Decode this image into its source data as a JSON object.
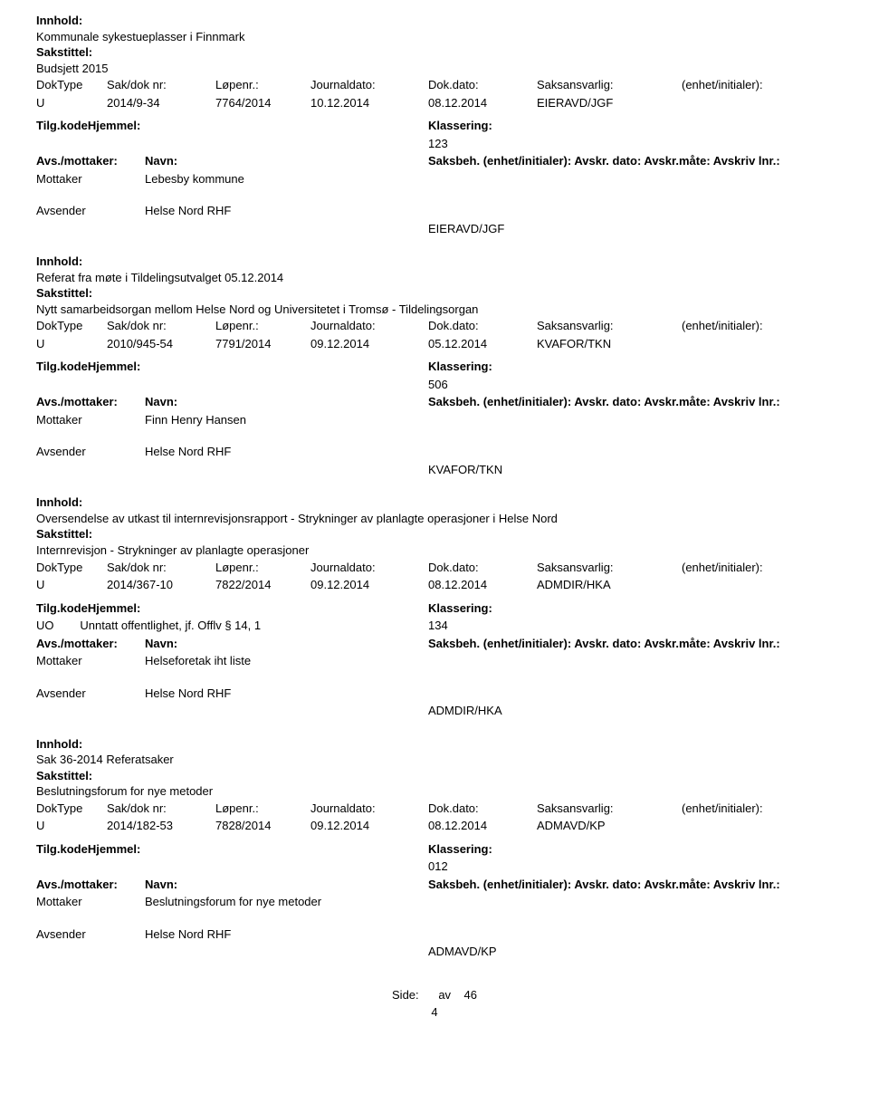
{
  "labels": {
    "innhold": "Innhold:",
    "sakstittel": "Sakstittel:",
    "doktype": "DokType",
    "sakdoknr": "Sak/dok nr:",
    "lopenr": "Løpenr.:",
    "journaldato": "Journaldato:",
    "dokdato": "Dok.dato:",
    "saksansvarlig": "Saksansvarlig:",
    "enhet_initialer": "(enhet/initialer):",
    "tilgkode": "Tilg.kode",
    "hjemmel": "Hjemmel:",
    "tilgkodehjemmel_combined": "Tilg.kodeHjemmel:",
    "klassering": "Klassering:",
    "avsmottaker": "Avs./mottaker:",
    "navn": "Navn:",
    "saksbeh": "Saksbeh. (enhet/initialer):",
    "avskr_dato": "Avskr. dato:",
    "avskr_maate": "Avskr.måte:",
    "avskriv_lnr": "Avskriv lnr.:",
    "mottaker": "Mottaker",
    "avsender": "Avsender"
  },
  "footer": {
    "side_label": "Side:",
    "av_label": "av",
    "total_pages": "46",
    "page_number": "4"
  },
  "entries": [
    {
      "innhold": "Kommunale sykestueplasser i Finnmark",
      "sakstittel": "Budsjett 2015",
      "doktype": "U",
      "sakdoknr": "2014/9-34",
      "lopenr": "7764/2014",
      "journaldato": "10.12.2014",
      "dokdato": "08.12.2014",
      "saksansvarlig": "EIERAVD/JGF",
      "tilg_left": "",
      "klassering": "123",
      "recipients": [
        {
          "role": "Mottaker",
          "name": "Lebesby kommune"
        }
      ],
      "sender": {
        "role": "Avsender",
        "name": "Helse Nord RHF"
      },
      "bottom_code": "EIERAVD/JGF"
    },
    {
      "innhold": "Referat fra møte i Tildelingsutvalget 05.12.2014",
      "sakstittel": "Nytt samarbeidsorgan mellom Helse Nord og Universitetet i Tromsø - Tildelingsorgan",
      "doktype": "U",
      "sakdoknr": "2010/945-54",
      "lopenr": "7791/2014",
      "journaldato": "09.12.2014",
      "dokdato": "05.12.2014",
      "saksansvarlig": "KVAFOR/TKN",
      "tilg_left": "",
      "klassering": "506",
      "recipients": [
        {
          "role": "Mottaker",
          "name": "Finn Henry Hansen"
        }
      ],
      "sender": {
        "role": "Avsender",
        "name": "Helse Nord RHF"
      },
      "bottom_code": "KVAFOR/TKN"
    },
    {
      "innhold": "Oversendelse av utkast til internrevisjonsrapport - Strykninger av planlagte operasjoner i Helse Nord",
      "sakstittel": "Internrevisjon - Strykninger av planlagte operasjoner",
      "doktype": "U",
      "sakdoknr": "2014/367-10",
      "lopenr": "7822/2014",
      "journaldato": "09.12.2014",
      "dokdato": "08.12.2014",
      "saksansvarlig": "ADMDIR/HKA",
      "tilg_left": "UO        Unntatt offentlighet, jf. Offlv § 14, 1",
      "klassering": "134",
      "recipients": [
        {
          "role": "Mottaker",
          "name": "Helseforetak iht liste"
        }
      ],
      "sender": {
        "role": "Avsender",
        "name": "Helse Nord RHF"
      },
      "bottom_code": "ADMDIR/HKA"
    },
    {
      "innhold": "Sak 36-2014 Referatsaker",
      "sakstittel": "Beslutningsforum for nye metoder",
      "doktype": "U",
      "sakdoknr": "2014/182-53",
      "lopenr": "7828/2014",
      "journaldato": "09.12.2014",
      "dokdato": "08.12.2014",
      "saksansvarlig": "ADMAVD/KP",
      "tilg_left": "",
      "klassering": "012",
      "recipients": [
        {
          "role": "Mottaker",
          "name": "Beslutningsforum for nye metoder"
        }
      ],
      "sender": {
        "role": "Avsender",
        "name": "Helse Nord RHF"
      },
      "bottom_code": "ADMAVD/KP"
    }
  ]
}
